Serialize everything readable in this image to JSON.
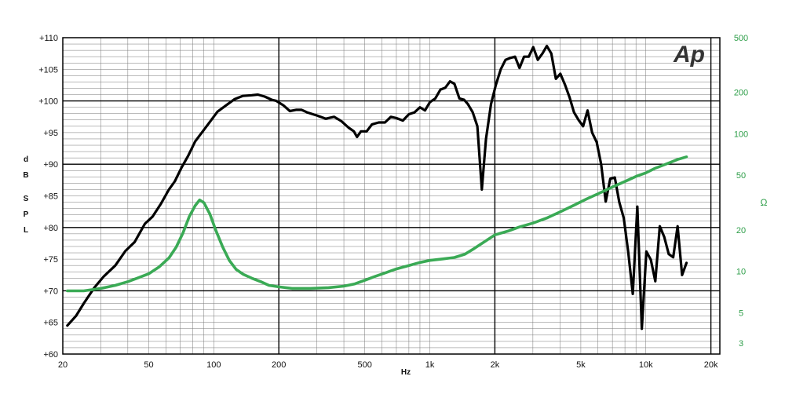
{
  "chart_data": {
    "type": "line",
    "xscale": "log",
    "xlim": [
      20,
      22000
    ],
    "ylim": [
      60,
      110
    ],
    "y2lim": [
      2.5,
      500
    ],
    "y2scale": "log",
    "grid": true,
    "xlabel": "Hz",
    "ylabel": [
      "d",
      "B",
      "S",
      "P",
      "L"
    ],
    "y2label": "Ω",
    "logo_text": "Ap",
    "x_ticks": [
      {
        "v": 20,
        "label": "20"
      },
      {
        "v": 50,
        "label": "50"
      },
      {
        "v": 100,
        "label": "100"
      },
      {
        "v": 200,
        "label": "200"
      },
      {
        "v": 500,
        "label": "500"
      },
      {
        "v": 1000,
        "label": "1k"
      },
      {
        "v": 2000,
        "label": "2k"
      },
      {
        "v": 5000,
        "label": "5k"
      },
      {
        "v": 10000,
        "label": "10k"
      },
      {
        "v": 20000,
        "label": "20k"
      }
    ],
    "y_ticks": [
      {
        "v": 60,
        "label": "+60"
      },
      {
        "v": 65,
        "label": "+65"
      },
      {
        "v": 70,
        "label": "+70"
      },
      {
        "v": 75,
        "label": "+75"
      },
      {
        "v": 80,
        "label": "+80"
      },
      {
        "v": 85,
        "label": "+85"
      },
      {
        "v": 90,
        "label": "+90"
      },
      {
        "v": 95,
        "label": "+95"
      },
      {
        "v": 100,
        "label": "+100"
      },
      {
        "v": 105,
        "label": "+105"
      },
      {
        "v": 110,
        "label": "+110"
      }
    ],
    "y2_ticks": [
      {
        "v": 3,
        "label": "3"
      },
      {
        "v": 5,
        "label": "5"
      },
      {
        "v": 10,
        "label": "10"
      },
      {
        "v": 20,
        "label": "20"
      },
      {
        "v": 50,
        "label": "50"
      },
      {
        "v": 100,
        "label": "100"
      },
      {
        "v": 200,
        "label": "200"
      },
      {
        "v": 500,
        "label": "500"
      }
    ],
    "series": [
      {
        "color": "#000000",
        "axis": "left",
        "points": [
          [
            21,
            64.5
          ],
          [
            23,
            66
          ],
          [
            25,
            68
          ],
          [
            28,
            70.5
          ],
          [
            31,
            72.3
          ],
          [
            35,
            74
          ],
          [
            39,
            76.3
          ],
          [
            43,
            77.7
          ],
          [
            48,
            80.6
          ],
          [
            52,
            81.7
          ],
          [
            57,
            83.8
          ],
          [
            62,
            86
          ],
          [
            66,
            87.3
          ],
          [
            71,
            89.5
          ],
          [
            76,
            91.3
          ],
          [
            82,
            93.6
          ],
          [
            88,
            95
          ],
          [
            95,
            96.5
          ],
          [
            104,
            98.3
          ],
          [
            114,
            99.3
          ],
          [
            125,
            100.3
          ],
          [
            136,
            100.8
          ],
          [
            150,
            100.9
          ],
          [
            160,
            101
          ],
          [
            172,
            100.7
          ],
          [
            185,
            100.2
          ],
          [
            195,
            100
          ],
          [
            210,
            99.3
          ],
          [
            225,
            98.4
          ],
          [
            240,
            98.6
          ],
          [
            255,
            98.6
          ],
          [
            270,
            98.2
          ],
          [
            300,
            97.7
          ],
          [
            330,
            97.2
          ],
          [
            360,
            97.5
          ],
          [
            390,
            96.8
          ],
          [
            420,
            95.8
          ],
          [
            445,
            95.2
          ],
          [
            460,
            94.3
          ],
          [
            480,
            95.2
          ],
          [
            510,
            95.2
          ],
          [
            540,
            96.3
          ],
          [
            580,
            96.6
          ],
          [
            620,
            96.6
          ],
          [
            660,
            97.5
          ],
          [
            700,
            97.3
          ],
          [
            750,
            96.9
          ],
          [
            800,
            97.9
          ],
          [
            850,
            98.2
          ],
          [
            900,
            99
          ],
          [
            950,
            98.5
          ],
          [
            1000,
            99.8
          ],
          [
            1060,
            100.4
          ],
          [
            1120,
            101.8
          ],
          [
            1180,
            102.1
          ],
          [
            1240,
            103.1
          ],
          [
            1300,
            102.7
          ],
          [
            1370,
            100.4
          ],
          [
            1440,
            100.2
          ],
          [
            1500,
            99.5
          ],
          [
            1580,
            98.2
          ],
          [
            1660,
            96
          ],
          [
            1740,
            86
          ],
          [
            1820,
            94
          ],
          [
            1920,
            99.5
          ],
          [
            2020,
            102.5
          ],
          [
            2130,
            105
          ],
          [
            2240,
            106.5
          ],
          [
            2360,
            106.8
          ],
          [
            2480,
            107
          ],
          [
            2600,
            105.2
          ],
          [
            2730,
            107
          ],
          [
            2870,
            107
          ],
          [
            3010,
            108.5
          ],
          [
            3160,
            106.5
          ],
          [
            3320,
            107.5
          ],
          [
            3480,
            108.7
          ],
          [
            3650,
            107.5
          ],
          [
            3830,
            103.5
          ],
          [
            4020,
            104.3
          ],
          [
            4220,
            102.6
          ],
          [
            4430,
            100.6
          ],
          [
            4650,
            98.2
          ],
          [
            4880,
            97
          ],
          [
            5120,
            96
          ],
          [
            5370,
            98.5
          ],
          [
            5640,
            95
          ],
          [
            5920,
            93.5
          ],
          [
            6210,
            90
          ],
          [
            6520,
            84.1
          ],
          [
            6840,
            87.7
          ],
          [
            7180,
            87.9
          ],
          [
            7530,
            84
          ],
          [
            7900,
            81.5
          ],
          [
            8290,
            76
          ],
          [
            8700,
            69.5
          ],
          [
            9130,
            83.3
          ],
          [
            9580,
            64
          ],
          [
            10050,
            76.2
          ],
          [
            10540,
            74.9
          ],
          [
            11060,
            71.5
          ],
          [
            11600,
            80.2
          ],
          [
            12170,
            78.5
          ],
          [
            12760,
            75.8
          ],
          [
            13380,
            75.3
          ],
          [
            14030,
            80.2
          ],
          [
            14710,
            72.5
          ],
          [
            15420,
            74.4
          ]
        ]
      },
      {
        "color": "#3aaa55",
        "axis": "right",
        "points": [
          [
            21,
            7.2
          ],
          [
            25,
            7.2
          ],
          [
            30,
            7.5
          ],
          [
            35,
            7.9
          ],
          [
            40,
            8.4
          ],
          [
            45,
            9
          ],
          [
            50,
            9.6
          ],
          [
            56,
            10.8
          ],
          [
            62,
            12.5
          ],
          [
            67,
            15
          ],
          [
            72,
            19
          ],
          [
            77,
            25
          ],
          [
            82,
            30
          ],
          [
            86,
            33
          ],
          [
            90,
            31.5
          ],
          [
            96,
            26
          ],
          [
            102,
            20
          ],
          [
            110,
            15
          ],
          [
            118,
            12
          ],
          [
            127,
            10.3
          ],
          [
            137,
            9.5
          ],
          [
            150,
            8.9
          ],
          [
            165,
            8.4
          ],
          [
            180,
            7.9
          ],
          [
            200,
            7.7
          ],
          [
            230,
            7.5
          ],
          [
            280,
            7.5
          ],
          [
            340,
            7.6
          ],
          [
            400,
            7.8
          ],
          [
            450,
            8.1
          ],
          [
            500,
            8.6
          ],
          [
            560,
            9.2
          ],
          [
            630,
            9.8
          ],
          [
            700,
            10.4
          ],
          [
            800,
            11
          ],
          [
            900,
            11.6
          ],
          [
            1000,
            12
          ],
          [
            1150,
            12.3
          ],
          [
            1300,
            12.6
          ],
          [
            1450,
            13.3
          ],
          [
            1600,
            14.6
          ],
          [
            1800,
            16.5
          ],
          [
            2000,
            18.4
          ],
          [
            2300,
            19.6
          ],
          [
            2600,
            21
          ],
          [
            3000,
            22.4
          ],
          [
            3500,
            24.5
          ],
          [
            4000,
            27
          ],
          [
            4600,
            30
          ],
          [
            5300,
            33.5
          ],
          [
            6100,
            37
          ],
          [
            7000,
            41
          ],
          [
            8000,
            45
          ],
          [
            9000,
            49
          ],
          [
            10000,
            52
          ],
          [
            11000,
            56
          ],
          [
            12000,
            59
          ],
          [
            13000,
            62
          ],
          [
            14000,
            65
          ],
          [
            15420,
            68
          ]
        ]
      }
    ]
  }
}
